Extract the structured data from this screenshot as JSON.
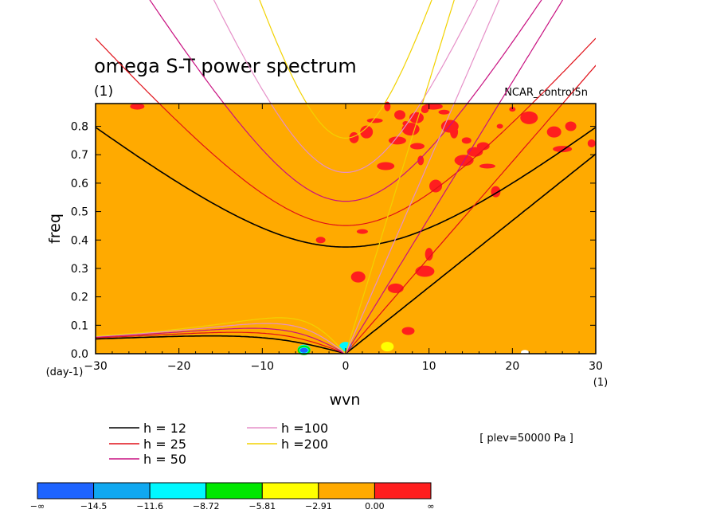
{
  "chart_data": {
    "type": "heatmap",
    "title": "omega S-T power spectrum",
    "subtitle": "(1)",
    "case_label": "NCAR_control5n",
    "xlabel": "wvn",
    "ylabel": "freq",
    "x_unit": "(1)",
    "y_unit": "(day-1)",
    "xlim": [
      -30,
      30
    ],
    "ylim": [
      0,
      0.88
    ],
    "x_ticks": [
      -30,
      -20,
      -10,
      0,
      10,
      20,
      30
    ],
    "x_tick_labels": [
      "−30",
      "−20",
      "−10",
      "0",
      "10",
      "20",
      "30"
    ],
    "y_ticks": [
      0,
      0.1,
      0.2,
      0.3,
      0.4,
      0.5,
      0.6,
      0.7,
      0.8
    ],
    "y_tick_labels": [
      "0.0",
      "0.1",
      "0.2",
      "0.3",
      "0.4",
      "0.5",
      "0.6",
      "0.7",
      "0.8"
    ],
    "level_note": "[ plev=50000 Pa ]",
    "background_color": "#ffaa00",
    "colorbar": {
      "labels": [
        "−∞",
        "−14.5",
        "−11.6",
        "−8.72",
        "−5.81",
        "−2.91",
        "0.00",
        "∞"
      ],
      "colors": [
        "#1e64ff",
        "#10a8f0",
        "#00f8ff",
        "#00e800",
        "#ffff00",
        "#ffaa00",
        "#ff1e1e"
      ]
    },
    "series": [
      {
        "name": "h = 12",
        "h": 12,
        "color": "#000000"
      },
      {
        "name": "h = 25",
        "h": 25,
        "color": "#e01018"
      },
      {
        "name": "h = 50",
        "h": 50,
        "color": "#c81080"
      },
      {
        "name": "h =100",
        "h": 100,
        "color": "#e690c8"
      },
      {
        "name": "h =200",
        "h": 200,
        "color": "#f2d200"
      }
    ],
    "positive_regions_red": [
      {
        "x": 7.2,
        "y": 0.81
      },
      {
        "x": 7.8,
        "y": 0.79
      },
      {
        "x": 8.5,
        "y": 0.83
      },
      {
        "x": 6.5,
        "y": 0.84
      },
      {
        "x": 9.5,
        "y": 0.86
      },
      {
        "x": 10.5,
        "y": 0.87
      },
      {
        "x": 3.5,
        "y": 0.82
      },
      {
        "x": 2.5,
        "y": 0.78
      },
      {
        "x": 1.0,
        "y": 0.76
      },
      {
        "x": 5.0,
        "y": 0.87
      },
      {
        "x": 6.2,
        "y": 0.75
      },
      {
        "x": 8.6,
        "y": 0.73
      },
      {
        "x": 11.8,
        "y": 0.85
      },
      {
        "x": 13.0,
        "y": 0.78
      },
      {
        "x": 14.2,
        "y": 0.68
      },
      {
        "x": 15.5,
        "y": 0.71
      },
      {
        "x": 16.5,
        "y": 0.73
      },
      {
        "x": 14.5,
        "y": 0.75
      },
      {
        "x": 20.0,
        "y": 0.86
      },
      {
        "x": 22.0,
        "y": 0.83
      },
      {
        "x": 25.0,
        "y": 0.78
      },
      {
        "x": 27.0,
        "y": 0.8
      },
      {
        "x": 29.5,
        "y": 0.74
      },
      {
        "x": 26.0,
        "y": 0.72
      },
      {
        "x": 17.0,
        "y": 0.66
      },
      {
        "x": 10.8,
        "y": 0.59
      },
      {
        "x": 18.0,
        "y": 0.57
      },
      {
        "x": 9.0,
        "y": 0.68
      },
      {
        "x": 4.8,
        "y": 0.66
      },
      {
        "x": -25.0,
        "y": 0.87
      },
      {
        "x": 2.0,
        "y": 0.43
      },
      {
        "x": 10.0,
        "y": 0.35
      },
      {
        "x": 9.5,
        "y": 0.29
      },
      {
        "x": 6.0,
        "y": 0.23
      },
      {
        "x": 7.5,
        "y": 0.08
      },
      {
        "x": -3.0,
        "y": 0.4
      },
      {
        "x": 18.5,
        "y": 0.8
      },
      {
        "x": 12.5,
        "y": 0.8
      },
      {
        "x": 1.5,
        "y": 0.27
      }
    ],
    "negative_regions": [
      {
        "x": -5.0,
        "y": 0.015,
        "level": "cyan"
      },
      {
        "x": -5.0,
        "y": 0.012,
        "level": "blue"
      },
      {
        "x": 0.0,
        "y": 0.025,
        "level": "cyan"
      },
      {
        "x": 5.0,
        "y": 0.025,
        "level": "yellow"
      },
      {
        "x": 21.5,
        "y": 0.005,
        "level": "light"
      }
    ]
  }
}
